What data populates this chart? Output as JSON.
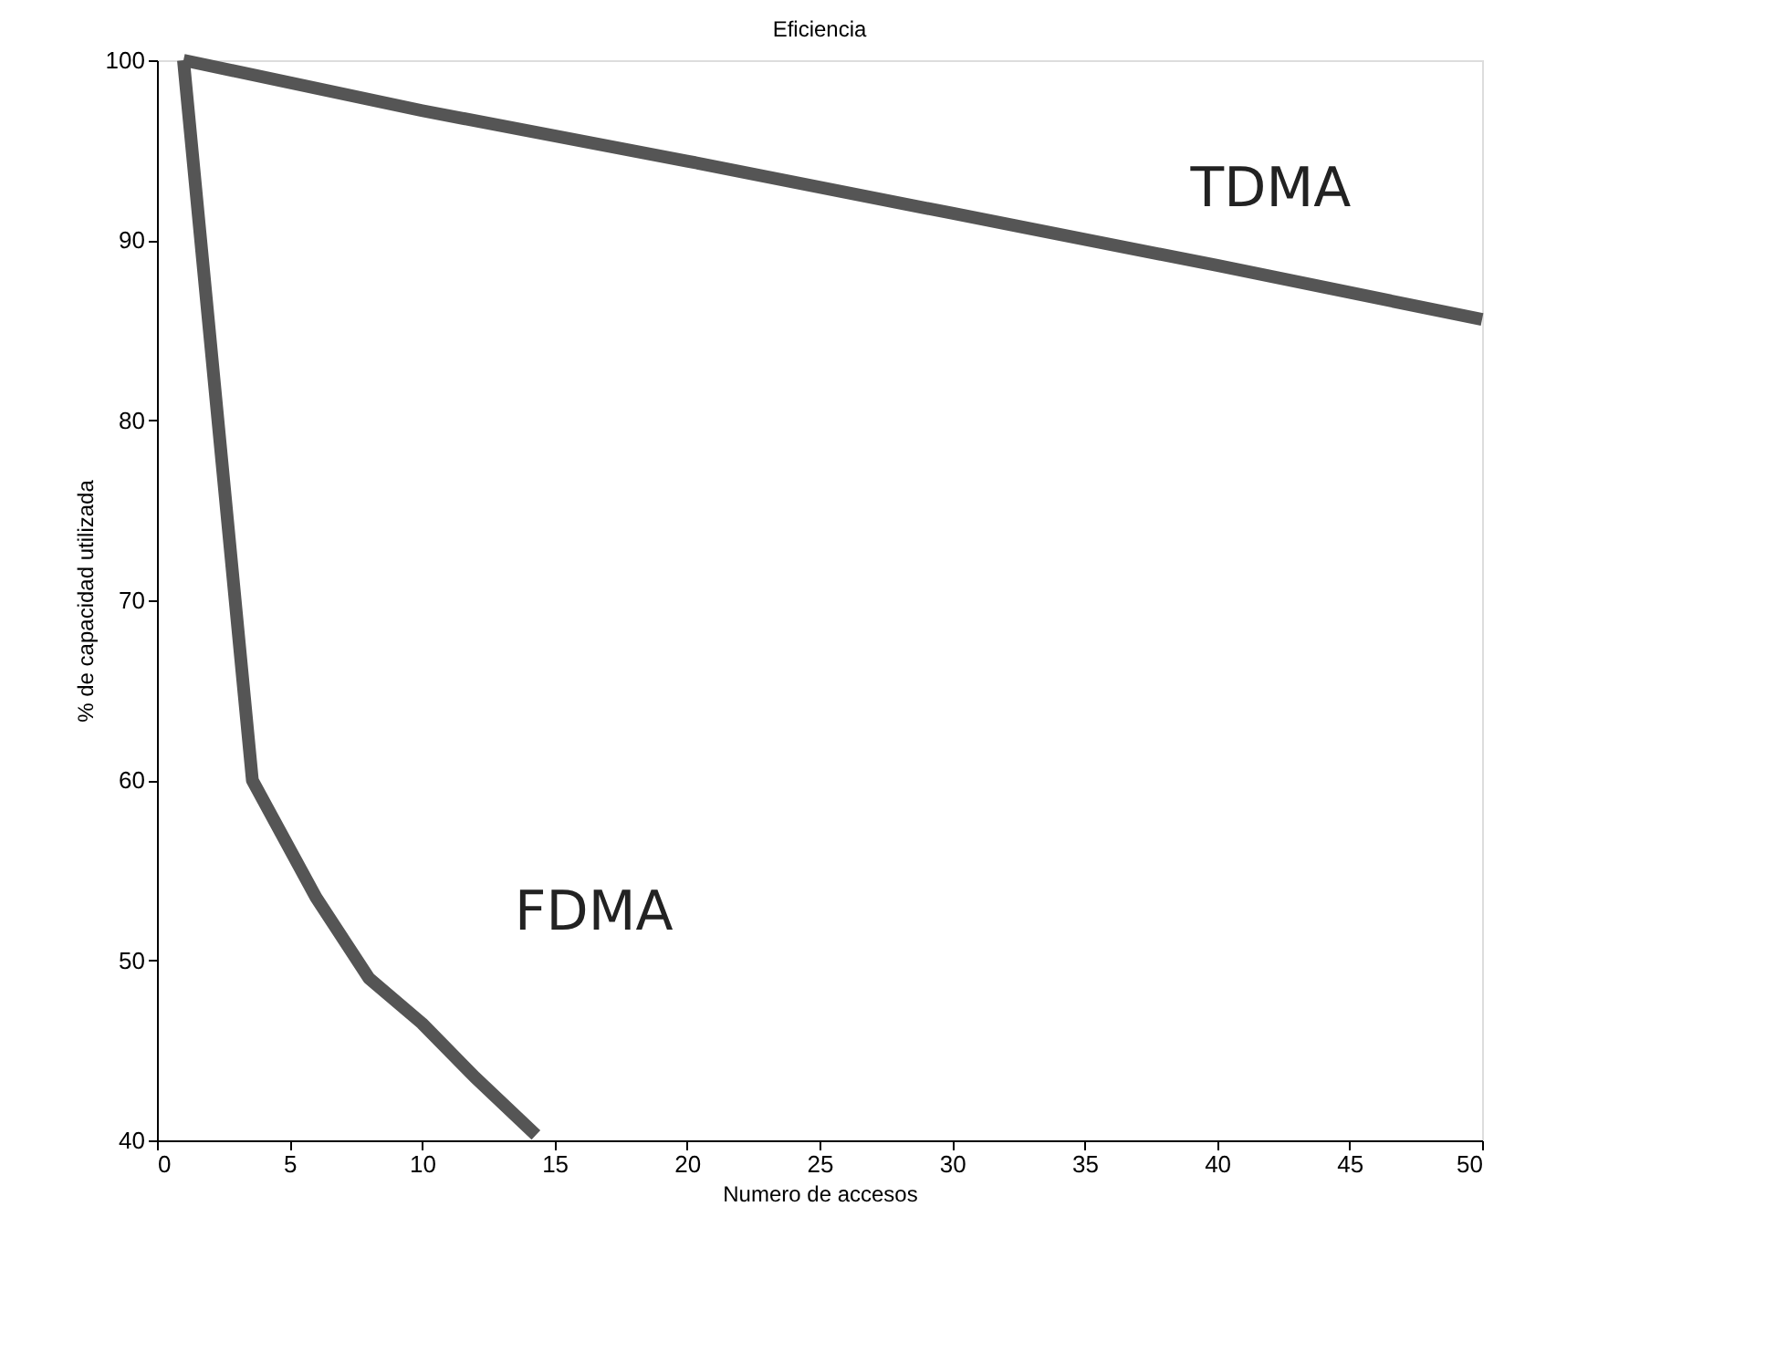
{
  "chart_data": {
    "type": "line",
    "title": "Eficiencia",
    "xlabel": "Numero de accesos",
    "ylabel": "% de capacidad utilizada",
    "xlim": [
      0,
      50
    ],
    "ylim": [
      40,
      100
    ],
    "xticks": [
      0,
      5,
      10,
      15,
      20,
      25,
      30,
      35,
      40,
      45,
      50
    ],
    "yticks": [
      40,
      50,
      60,
      70,
      80,
      90,
      100
    ],
    "grid": false,
    "legend": false,
    "marker": "none",
    "line_style": "solid",
    "series": [
      {
        "name": "TDMA",
        "color": "#555555",
        "x": [
          1,
          10,
          20,
          30,
          40,
          50
        ],
        "values": [
          100,
          97.2,
          94.4,
          91.5,
          88.6,
          85.6
        ]
      },
      {
        "name": "FDMA",
        "color": "#555555",
        "x": [
          1,
          3.6,
          6,
          8,
          10,
          12,
          14.3
        ],
        "values": [
          100,
          60,
          53.5,
          49,
          46.5,
          43.5,
          40.3
        ]
      }
    ]
  }
}
